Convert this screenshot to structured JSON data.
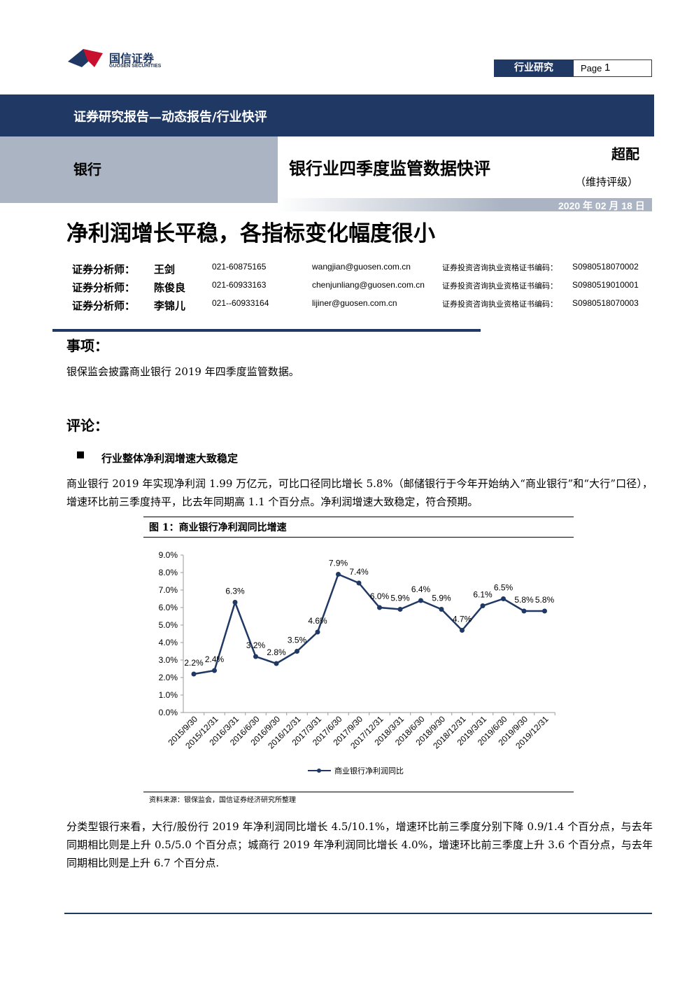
{
  "header": {
    "brand": "国信证券",
    "brand_en": "GUOSEN SECURITIES",
    "tag": "行业研究",
    "page_label": "Page",
    "page_number": "1"
  },
  "banner": "证券研究报告—动态报告/行业快评",
  "sector": "银行",
  "report_title": "银行业四季度监管数据快评",
  "rating": "超配",
  "rating_note": "（维持评级）",
  "date": "2020 年 02 月 18 日",
  "headline": "净利润增长平稳，各指标变化幅度很小",
  "analysts": [
    {
      "role": "证券分析师：",
      "name": "王剑",
      "phone": "021-60875165",
      "email": "wangjian@guosen.com.cn",
      "cert_label": "证券投资咨询执业资格证书编码：",
      "cert": "S0980518070002"
    },
    {
      "role": "证券分析师：",
      "name": "陈俊良",
      "phone": "021-60933163",
      "email": "chenjunliang@guosen.com.cn",
      "cert_label": "证券投资咨询执业资格证书编码：",
      "cert": "S0980519010001"
    },
    {
      "role": "证券分析师：",
      "name": "李锦儿",
      "phone": "021--60933164",
      "email": "lijiner@guosen.com.cn",
      "cert_label": "证券投资咨询执业资格证书编码：",
      "cert": "S0980518070003"
    }
  ],
  "event": {
    "heading": "事项：",
    "text": "银保监会披露商业银行 2019 年四季度监管数据。"
  },
  "comment": {
    "heading": "评论：",
    "bullet": "行业整体净利润增速大致稳定",
    "paragraph1": "商业银行 2019 年实现净利润 1.99 万亿元，可比口径同比增长 5.8%（邮储银行于今年开始纳入“商业银行”和“大行”口径），增速环比前三季度持平，比去年同期高 1.1 个百分点。净利润增速大致稳定，符合预期。",
    "paragraph2": "分类型银行来看，大行/股份行 2019 年净利润同比增长 4.5/10.1%，增速环比前三季度分别下降 0.9/1.4 个百分点，与去年同期相比则是上升 0.5/5.0 个百分点；城商行 2019 年净利润同比增长 4.0%，增速环比前三季度上升 3.6 个百分点，与去年同期相比则是上升 6.7 个百分点."
  },
  "figure": {
    "title": "图 1：商业银行净利润同比增速",
    "source": "资料来源：银保监会，国信证券经济研究所整理"
  },
  "chart_data": {
    "type": "line",
    "categories": [
      "2015/9/30",
      "2015/12/31",
      "2016/3/31",
      "2016/6/30",
      "2016/9/30",
      "2016/12/31",
      "2017/3/31",
      "2017/6/30",
      "2017/9/30",
      "2017/12/31",
      "2018/3/31",
      "2018/6/30",
      "2018/9/30",
      "2018/12/31",
      "2019/3/31",
      "2019/6/30",
      "2019/9/30",
      "2019/12/31"
    ],
    "series": [
      {
        "name": "商业银行净利润同比",
        "color": "#1f3864",
        "values": [
          2.2,
          2.4,
          6.3,
          3.2,
          2.8,
          3.5,
          4.6,
          7.9,
          7.4,
          6.0,
          5.9,
          6.4,
          5.9,
          4.7,
          6.1,
          6.5,
          5.8,
          5.8
        ],
        "value_labels": [
          "2.2%",
          "2.4%",
          "6.3%",
          "3.2%",
          "2.8%",
          "3.5%",
          "4.6%",
          "7.9%",
          "7.4%",
          "6.0%",
          "5.9%",
          "6.4%",
          "5.9%",
          "4.7%",
          "6.1%",
          "6.5%",
          "5.8%",
          "5.8%"
        ]
      }
    ],
    "ylim": [
      0,
      9
    ],
    "yticks": [
      {
        "value": 0,
        "label": "0.0%"
      },
      {
        "value": 1,
        "label": "1.0%"
      },
      {
        "value": 2,
        "label": "2.0%"
      },
      {
        "value": 3,
        "label": "3.0%"
      },
      {
        "value": 4,
        "label": "4.0%"
      },
      {
        "value": 5,
        "label": "5.0%"
      },
      {
        "value": 6,
        "label": "6.0%"
      },
      {
        "value": 7,
        "label": "7.0%"
      },
      {
        "value": 8,
        "label": "8.0%"
      },
      {
        "value": 9,
        "label": "9.0%"
      }
    ],
    "legend": "bottom"
  }
}
